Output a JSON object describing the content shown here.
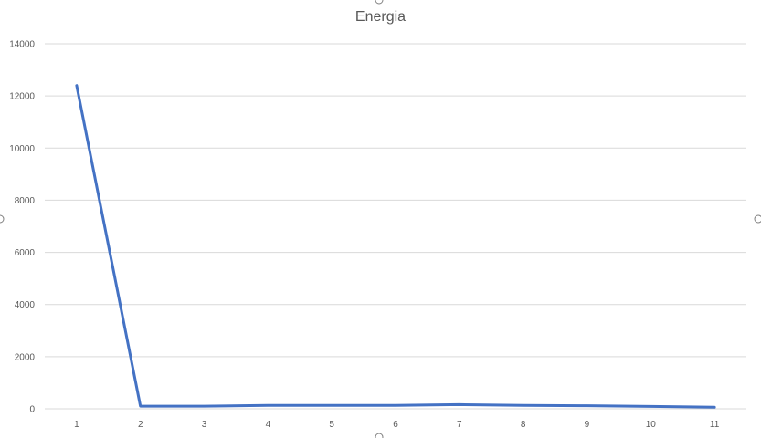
{
  "chart_data": {
    "type": "line",
    "title": "Energia",
    "xlabel": "",
    "ylabel": "",
    "categories": [
      "1",
      "2",
      "3",
      "4",
      "5",
      "6",
      "7",
      "8",
      "9",
      "10",
      "11"
    ],
    "series": [
      {
        "values": [
          12400,
          100,
          100,
          130,
          130,
          130,
          160,
          130,
          120,
          90,
          60
        ],
        "color": "#4472c4"
      }
    ],
    "ylim": [
      0,
      14000
    ],
    "yticks": [
      0,
      2000,
      4000,
      6000,
      8000,
      10000,
      12000,
      14000
    ],
    "grid": true,
    "legend": "none"
  }
}
